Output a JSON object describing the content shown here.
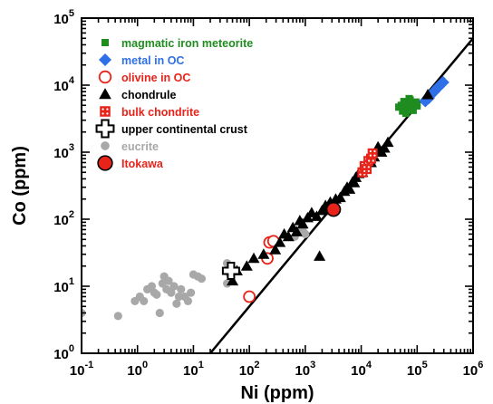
{
  "chart_data": {
    "type": "scatter",
    "xlabel": "Ni (ppm)",
    "ylabel": "Co (ppm)",
    "xscale": "log",
    "yscale": "log",
    "xlim": [
      0.1,
      1000000
    ],
    "ylim": [
      1,
      100000
    ],
    "x_ticks": [
      {
        "base": "10",
        "exp": "-1",
        "value": 0.1
      },
      {
        "base": "10",
        "exp": "0",
        "value": 1
      },
      {
        "base": "10",
        "exp": "1",
        "value": 10
      },
      {
        "base": "10",
        "exp": "2",
        "value": 100
      },
      {
        "base": "10",
        "exp": "3",
        "value": 1000
      },
      {
        "base": "10",
        "exp": "4",
        "value": 10000
      },
      {
        "base": "10",
        "exp": "5",
        "value": 100000
      },
      {
        "base": "10",
        "exp": "6",
        "value": 1000000
      }
    ],
    "y_ticks": [
      {
        "base": "10",
        "exp": "0",
        "value": 1
      },
      {
        "base": "10",
        "exp": "1",
        "value": 10
      },
      {
        "base": "10",
        "exp": "2",
        "value": 100
      },
      {
        "base": "10",
        "exp": "3",
        "value": 1000
      },
      {
        "base": "10",
        "exp": "4",
        "value": 10000
      },
      {
        "base": "10",
        "exp": "5",
        "value": 100000
      }
    ],
    "grid": false,
    "legend_position": "top-left",
    "series": [
      {
        "name": "magmatic iron meteorite",
        "marker": "small-square",
        "color": "#1f8c1f",
        "points": [
          [
            47000,
            4700
          ],
          [
            52000,
            5000
          ],
          [
            55000,
            4100
          ],
          [
            60000,
            4400
          ],
          [
            65000,
            5300
          ],
          [
            70000,
            4600
          ],
          [
            75000,
            6000
          ],
          [
            80000,
            5000
          ],
          [
            85000,
            4200
          ],
          [
            95000,
            5600
          ],
          [
            100000,
            4900
          ],
          [
            63000,
            3800
          ],
          [
            58000,
            5700
          ],
          [
            72000,
            6300
          ],
          [
            88000,
            5100
          ]
        ]
      },
      {
        "name": "metal in OC",
        "marker": "diamond",
        "color": "#2f6fe8",
        "points": [
          [
            140000,
            5800
          ],
          [
            170000,
            7000
          ],
          [
            200000,
            8000
          ],
          [
            240000,
            9400
          ],
          [
            290000,
            11000
          ],
          [
            160000,
            6400
          ]
        ]
      },
      {
        "name": "olivine in OC",
        "marker": "open-circle",
        "color": "#e8231a",
        "points": [
          [
            230,
            45
          ],
          [
            270,
            47
          ],
          [
            210,
            26
          ],
          [
            100,
            7
          ]
        ]
      },
      {
        "name": "chondrule",
        "marker": "triangle",
        "color": "#000000",
        "points": [
          [
            50,
            12
          ],
          [
            60,
            17
          ],
          [
            90,
            20
          ],
          [
            120,
            26
          ],
          [
            180,
            30
          ],
          [
            290,
            35
          ],
          [
            350,
            45
          ],
          [
            420,
            60
          ],
          [
            500,
            55
          ],
          [
            600,
            75
          ],
          [
            700,
            65
          ],
          [
            800,
            95
          ],
          [
            900,
            85
          ],
          [
            1100,
            105
          ],
          [
            1300,
            125
          ],
          [
            1600,
            110
          ],
          [
            2000,
            135
          ],
          [
            2300,
            160
          ],
          [
            2600,
            140
          ],
          [
            2800,
            180
          ],
          [
            3100,
            145
          ],
          [
            3500,
            200
          ],
          [
            4200,
            210
          ],
          [
            5000,
            260
          ],
          [
            5600,
            300
          ],
          [
            6200,
            280
          ],
          [
            7000,
            360
          ],
          [
            8000,
            420
          ],
          [
            9000,
            480
          ],
          [
            12000,
            620
          ],
          [
            14000,
            750
          ],
          [
            17000,
            850
          ],
          [
            20000,
            1200
          ],
          [
            23000,
            1000
          ],
          [
            26000,
            1150
          ],
          [
            30000,
            1400
          ],
          [
            1800,
            28
          ],
          [
            7500,
            350
          ],
          [
            10500,
            500
          ],
          [
            15000,
            700
          ],
          [
            155000,
            7200
          ]
        ]
      },
      {
        "name": "bulk chondrite",
        "marker": "dotted-square",
        "color": "#e8231a",
        "points": [
          [
            10500,
            500
          ],
          [
            11500,
            620
          ],
          [
            12500,
            560
          ],
          [
            13500,
            740
          ],
          [
            15000,
            800
          ],
          [
            16000,
            960
          ]
        ]
      },
      {
        "name": "upper continental crust",
        "marker": "cross",
        "color": "#000000",
        "points": [
          [
            47,
            17
          ]
        ]
      },
      {
        "name": "eucrite",
        "marker": "filled-circle",
        "color": "#a8a8a8",
        "points": [
          [
            0.1,
            4
          ],
          [
            0.45,
            3.6
          ],
          [
            0.9,
            6
          ],
          [
            1.1,
            7
          ],
          [
            1.3,
            6
          ],
          [
            1.5,
            9
          ],
          [
            1.8,
            10
          ],
          [
            2.0,
            8
          ],
          [
            2.2,
            7.5
          ],
          [
            2.5,
            4
          ],
          [
            2.8,
            11
          ],
          [
            3.0,
            14
          ],
          [
            3.3,
            9
          ],
          [
            3.6,
            12
          ],
          [
            4.0,
            8
          ],
          [
            4.5,
            10
          ],
          [
            5.0,
            5.5
          ],
          [
            5.5,
            7
          ],
          [
            6.0,
            9
          ],
          [
            7.0,
            7
          ],
          [
            8.0,
            6
          ],
          [
            9.0,
            8
          ],
          [
            10,
            15
          ],
          [
            12,
            14
          ],
          [
            14,
            13
          ],
          [
            40,
            22
          ],
          [
            45,
            15
          ],
          [
            40,
            11
          ],
          [
            650,
            55
          ],
          [
            800,
            65
          ],
          [
            900,
            70
          ],
          [
            1000,
            60
          ]
        ]
      },
      {
        "name": "Itokawa",
        "marker": "big-circle",
        "color": "#e8231a",
        "points": [
          [
            3200,
            140
          ]
        ]
      }
    ],
    "fit_line": {
      "slope": 1,
      "x_start": 20,
      "x_end": 1000000,
      "ratio": 0.05
    }
  }
}
